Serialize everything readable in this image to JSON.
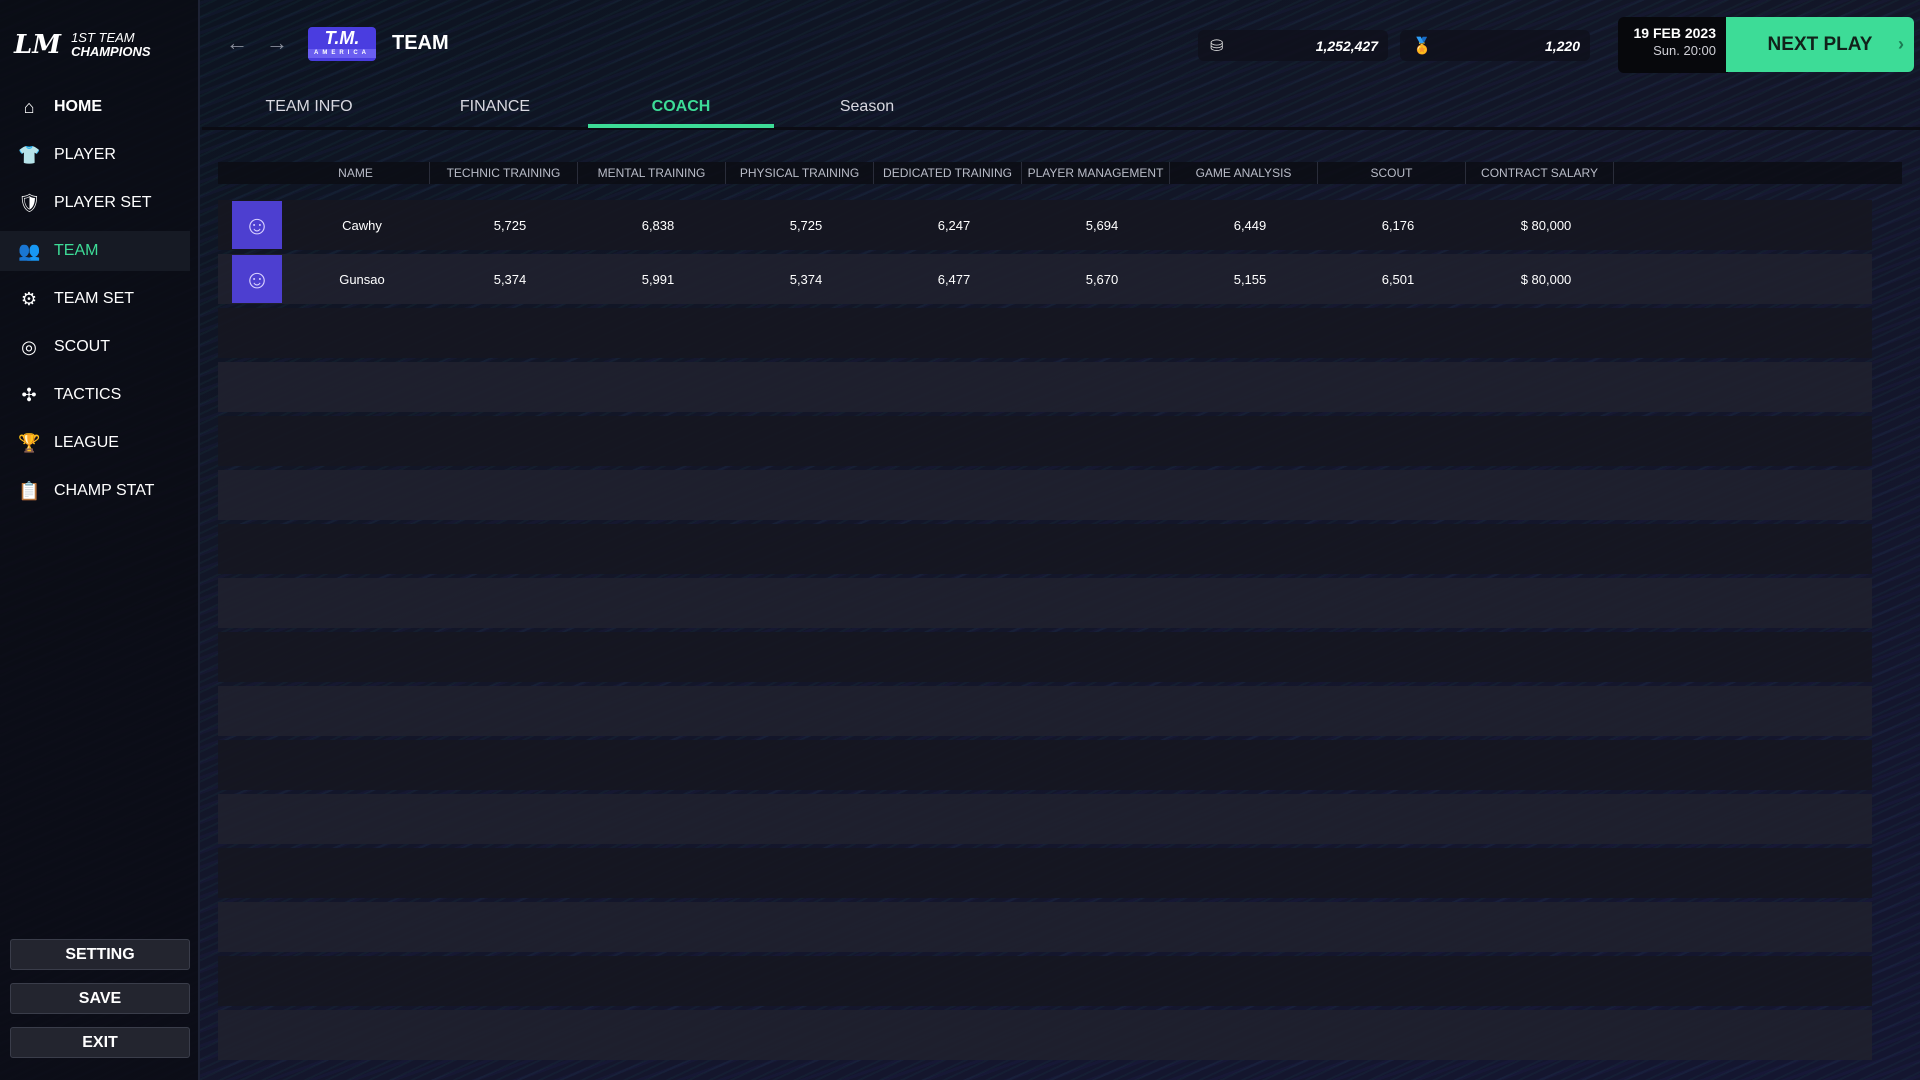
{
  "app": {
    "logo_mark": "LM",
    "logo_line1": "1ST TEAM",
    "logo_line2": "CHAMPIONS"
  },
  "sidebar": {
    "items": [
      {
        "label": "HOME",
        "icon": "home-icon",
        "glyph": "⌂"
      },
      {
        "label": "PLAYER",
        "icon": "shirt-icon",
        "glyph": "👕"
      },
      {
        "label": "PLAYER SET",
        "icon": "player-set-icon",
        "glyph": "🛡"
      },
      {
        "label": "TEAM",
        "icon": "team-icon",
        "glyph": "👥"
      },
      {
        "label": "TEAM SET",
        "icon": "team-set-icon",
        "glyph": "⚙"
      },
      {
        "label": "SCOUT",
        "icon": "binoculars-icon",
        "glyph": "◎"
      },
      {
        "label": "TACTICS",
        "icon": "tactics-icon",
        "glyph": "✣"
      },
      {
        "label": "LEAGUE",
        "icon": "trophy-icon",
        "glyph": "🏆"
      },
      {
        "label": "CHAMP STAT",
        "icon": "clipboard-icon",
        "glyph": "📋"
      }
    ],
    "active": "TEAM",
    "buttons": {
      "setting": "SETTING",
      "save": "SAVE",
      "exit": "EXIT"
    }
  },
  "header": {
    "team_logo": "T.M.",
    "team_logo_sub": "AMERICA",
    "title": "TEAM",
    "coins": "1,252,427",
    "medals": "1,220",
    "date": "19 FEB 2023",
    "time": "Sun. 20:00",
    "next_play": "NEXT PLAY",
    "accent": "#3ddc97"
  },
  "tabs": [
    {
      "label": "TEAM INFO"
    },
    {
      "label": "FINANCE"
    },
    {
      "label": "COACH",
      "active": true
    },
    {
      "label": "Season"
    }
  ],
  "table": {
    "columns": [
      "NAME",
      "TECHNIC TRAINING",
      "MENTAL TRAINING",
      "PHYSICAL TRAINING",
      "DEDICATED TRAINING",
      "PLAYER MANAGEMENT",
      "GAME ANALYSIS",
      "SCOUT",
      "CONTRACT SALARY"
    ],
    "rows": [
      [
        "Cawhy",
        "5,725",
        "6,838",
        "5,725",
        "6,247",
        "5,694",
        "6,449",
        "6,176",
        "$ 80,000"
      ],
      [
        "Gunsao",
        "5,374",
        "5,991",
        "5,374",
        "6,477",
        "5,670",
        "5,155",
        "6,501",
        "$ 80,000"
      ]
    ]
  }
}
